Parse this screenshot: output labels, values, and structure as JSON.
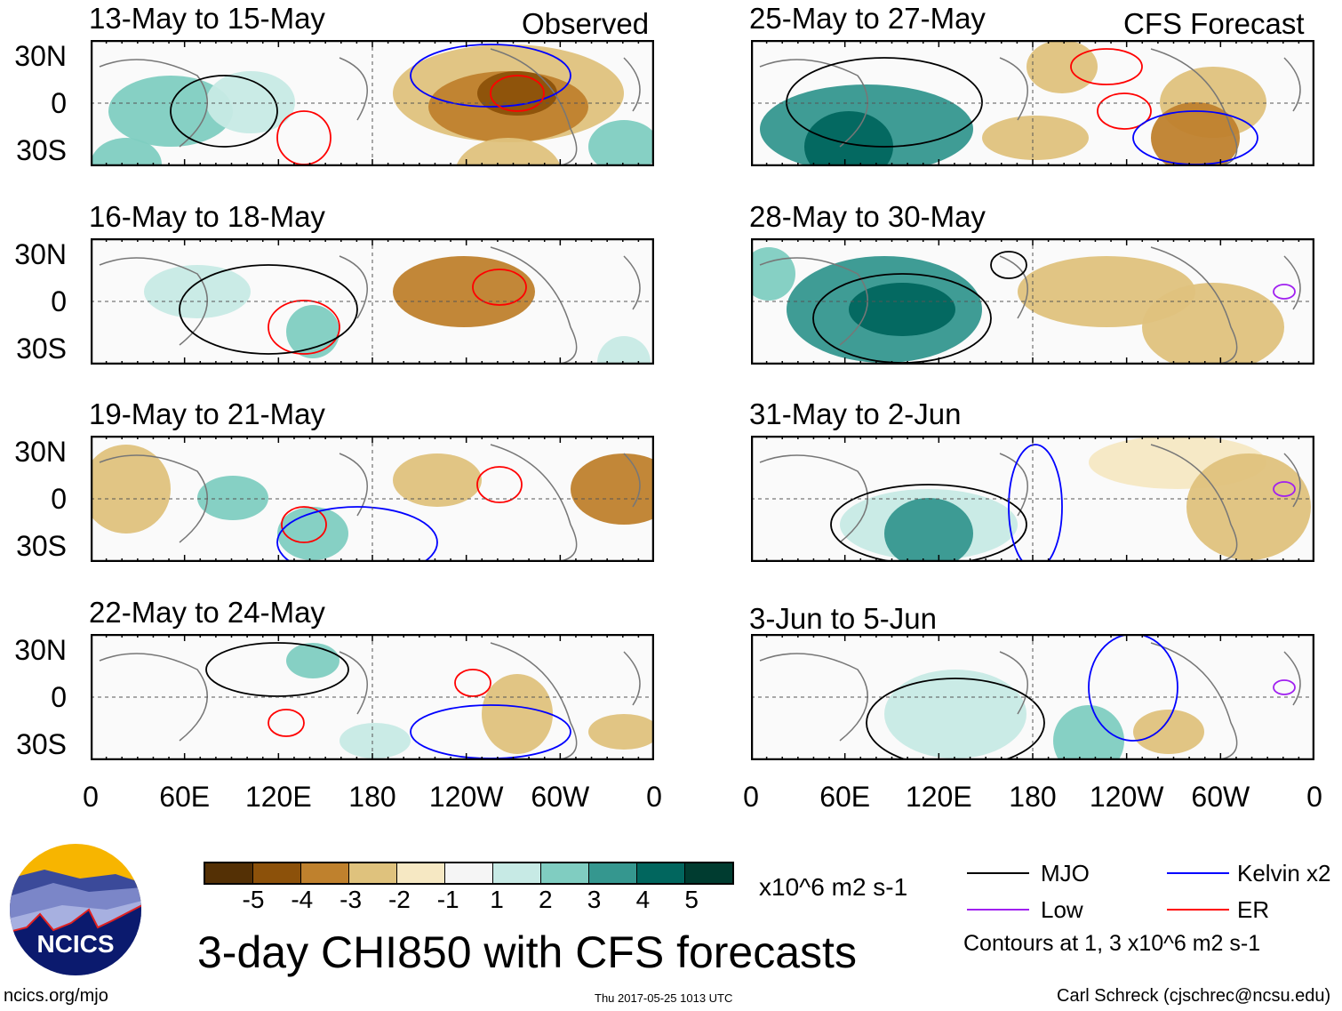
{
  "headers": {
    "observed": "Observed",
    "forecast": "CFS Forecast"
  },
  "panels": [
    {
      "title": "13-May to 15-May",
      "type": "observed"
    },
    {
      "title": "16-May to 18-May",
      "type": "observed"
    },
    {
      "title": "19-May to 21-May",
      "type": "observed"
    },
    {
      "title": "22-May to 24-May",
      "type": "observed"
    },
    {
      "title": "25-May to 27-May",
      "type": "forecast"
    },
    {
      "title": "28-May to 30-May",
      "type": "forecast"
    },
    {
      "title": "31-May to 2-Jun",
      "type": "forecast"
    },
    {
      "title": "3-Jun to 5-Jun",
      "type": "forecast"
    }
  ],
  "lat_labels": [
    "30N",
    "0",
    "30S"
  ],
  "lon_labels": [
    "0",
    "60E",
    "120E",
    "180",
    "120W",
    "60W",
    "0"
  ],
  "colorbar": {
    "colors": [
      "#543005",
      "#8c510a",
      "#bf812d",
      "#dfc27d",
      "#f6e8c3",
      "#f5f5f5",
      "#c7eae5",
      "#80cdc1",
      "#35978f",
      "#01665e",
      "#003c30"
    ],
    "labels": [
      "-5",
      "-4",
      "-3",
      "-2",
      "-1",
      "1",
      "2",
      "3",
      "4",
      "5"
    ],
    "units": "x10^6 m2 s-1"
  },
  "legend": {
    "mjo": {
      "label": "MJO",
      "color": "#000000"
    },
    "kelvin": {
      "label": "Kelvin x2",
      "color": "#0000ff"
    },
    "low": {
      "label": "Low",
      "color": "#a020f0"
    },
    "er": {
      "label": "ER",
      "color": "#ff0000"
    },
    "contours_note": "Contours at 1, 3 x10^6 m2 s-1"
  },
  "title": "3-day CHI850 with CFS forecasts",
  "logo": {
    "text": "NCICS"
  },
  "footer": {
    "url": "ncics.org/mjo",
    "timestamp": "Thu 2017-05-25 1013 UTC",
    "credit": "Carl Schreck (cjschrec@ncsu.edu)"
  }
}
